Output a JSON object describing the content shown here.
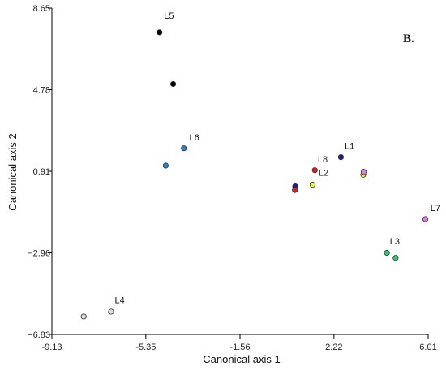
{
  "chart_data": {
    "type": "scatter",
    "panel_label": "B.",
    "xlabel": "Canonical axis 1",
    "ylabel": "Canonical axis 2",
    "xlim": [
      -9.13,
      6.01
    ],
    "ylim": [
      -6.83,
      8.65
    ],
    "xticks": [
      -9.13,
      -5.35,
      -1.56,
      2.22,
      6.01
    ],
    "xtick_labels": [
      "-9.13",
      "-5.35",
      "-1.56",
      "2.22",
      "6.01"
    ],
    "yticks": [
      -6.83,
      -2.96,
      0.91,
      4.78,
      8.65
    ],
    "ytick_labels": [
      "−6.83",
      "−2.96",
      "0.91",
      "4.78",
      "8.65"
    ],
    "series": [
      {
        "name": "L1",
        "color": "#1a1aa0",
        "points": [
          {
            "x": 2.5,
            "y": 1.58
          },
          {
            "x": 0.66,
            "y": 0.2
          }
        ]
      },
      {
        "name": "L2",
        "color": "#ecec3a",
        "points": [
          {
            "x": 1.36,
            "y": 0.27
          },
          {
            "x": 3.4,
            "y": 0.75
          }
        ]
      },
      {
        "name": "L3",
        "color": "#2ecc71",
        "points": [
          {
            "x": 4.35,
            "y": -2.96
          },
          {
            "x": 4.7,
            "y": -3.2
          }
        ]
      },
      {
        "name": "L4",
        "color": "#dcdcdc",
        "points": [
          {
            "x": -7.85,
            "y": -5.98
          },
          {
            "x": -6.75,
            "y": -5.75
          }
        ]
      },
      {
        "name": "L5",
        "color": "#000000",
        "points": [
          {
            "x": -4.8,
            "y": 7.5
          },
          {
            "x": -4.25,
            "y": 5.05
          }
        ]
      },
      {
        "name": "L6",
        "color": "#1f86c8",
        "points": [
          {
            "x": -3.82,
            "y": 2.0
          },
          {
            "x": -4.55,
            "y": 1.18
          }
        ]
      },
      {
        "name": "L7",
        "color": "#e07ee0",
        "points": [
          {
            "x": 5.9,
            "y": -1.36
          },
          {
            "x": 3.42,
            "y": 0.88
          }
        ]
      },
      {
        "name": "L8",
        "color": "#e01e1e",
        "points": [
          {
            "x": 1.45,
            "y": 0.96
          },
          {
            "x": 0.65,
            "y": 0.02
          }
        ]
      }
    ],
    "point_labels": [
      {
        "text": "L5",
        "x": -4.62,
        "y": 8.15
      },
      {
        "text": "L6",
        "x": -3.6,
        "y": 2.38
      },
      {
        "text": "L8",
        "x": 1.57,
        "y": 1.34
      },
      {
        "text": "L1",
        "x": 2.65,
        "y": 1.97
      },
      {
        "text": "L2",
        "x": 1.6,
        "y": 0.7
      },
      {
        "text": "L7",
        "x": 6.1,
        "y": -0.98
      },
      {
        "text": "L3",
        "x": 4.47,
        "y": -2.56
      },
      {
        "text": "L4",
        "x": -6.6,
        "y": -5.35
      }
    ],
    "grid": false,
    "legend": "none"
  }
}
